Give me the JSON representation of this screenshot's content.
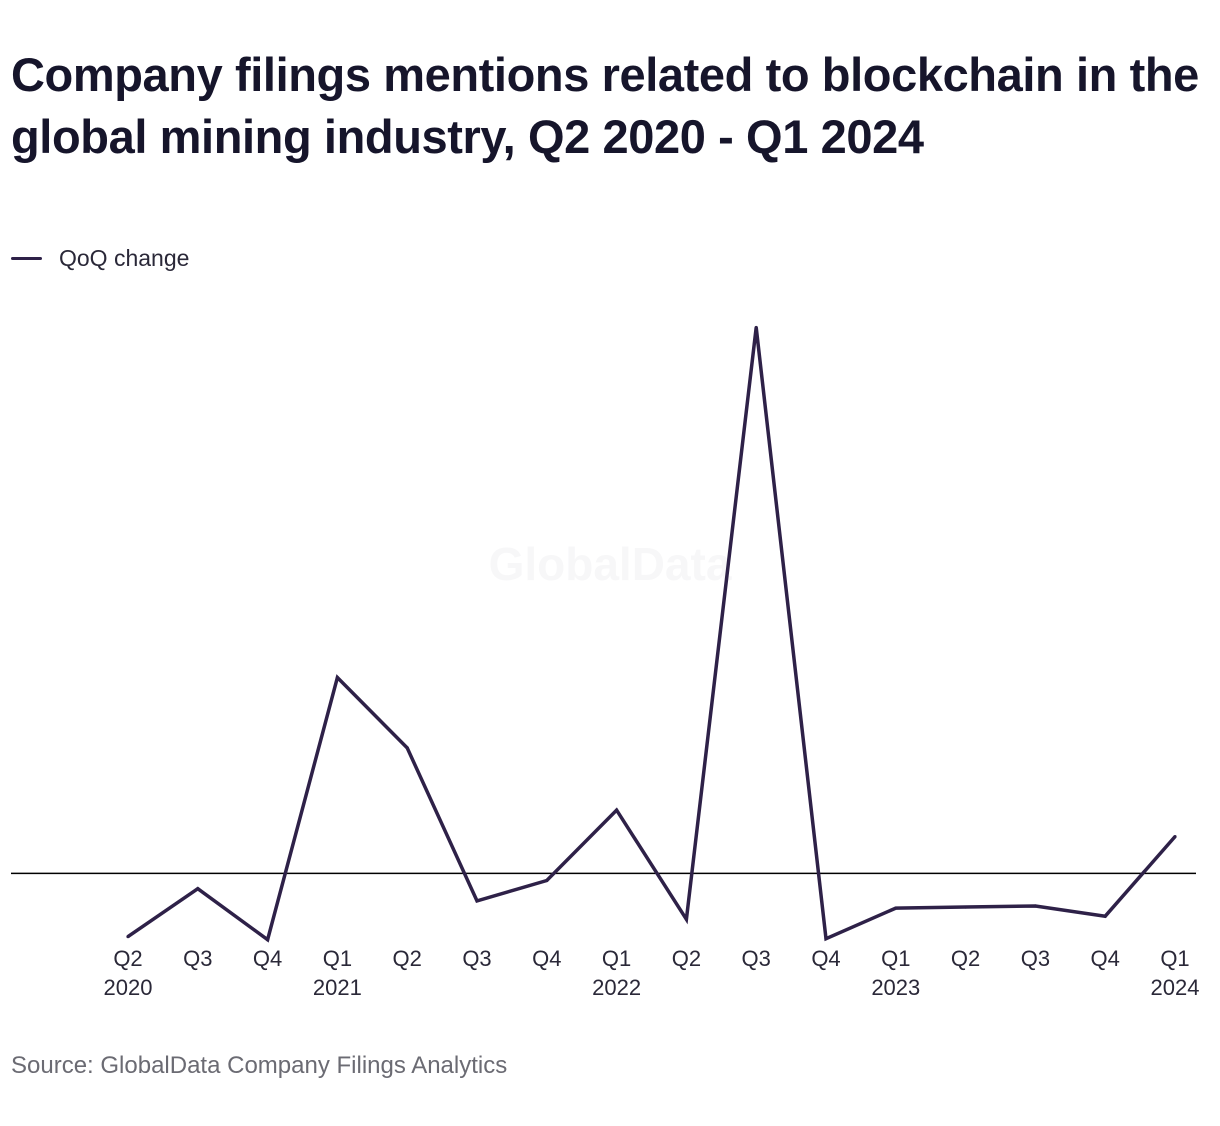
{
  "colors": {
    "series": "#2e2148",
    "zero_line": "#000000",
    "title": "#16152b",
    "source": "#6b6b73",
    "watermark": "#f7f7f8"
  },
  "watermark": "GlobalData",
  "source": "Source: GlobalData Company Filings Analytics",
  "chart_data": {
    "type": "line",
    "title": "Company filings mentions related to blockchain in the global mining industry, Q2 2020 - Q1 2024",
    "xlabel": "",
    "ylabel": "",
    "categories": [
      "Q2 2020",
      "Q3 2020",
      "Q4 2020",
      "Q1 2021",
      "Q2 2021",
      "Q3 2021",
      "Q4 2021",
      "Q1 2022",
      "Q2 2022",
      "Q3 2022",
      "Q4 2022",
      "Q1 2023",
      "Q2 2023",
      "Q3 2023",
      "Q4 2023",
      "Q1 2024"
    ],
    "tick_labels": [
      [
        "Q2",
        "2020"
      ],
      [
        "Q3",
        ""
      ],
      [
        "Q4",
        ""
      ],
      [
        "Q1",
        "2021"
      ],
      [
        "Q2",
        ""
      ],
      [
        "Q3",
        ""
      ],
      [
        "Q4",
        ""
      ],
      [
        "Q1",
        "2022"
      ],
      [
        "Q2",
        ""
      ],
      [
        "Q3",
        ""
      ],
      [
        "Q4",
        ""
      ],
      [
        "Q1",
        "2023"
      ],
      [
        "Q2",
        ""
      ],
      [
        "Q3",
        ""
      ],
      [
        "Q4",
        ""
      ],
      [
        "Q1",
        "2024"
      ]
    ],
    "series": [
      {
        "name": "QoQ change",
        "values": [
          -62,
          -15,
          -65,
          192,
          123,
          -27,
          -7,
          62,
          -45,
          535,
          -64,
          -34,
          -33,
          -32,
          -42,
          36
        ]
      }
    ],
    "ylim": [
      -80,
      560
    ],
    "zero_line": true,
    "y_axis_labels": false,
    "grid": false,
    "legend": "top-left"
  }
}
